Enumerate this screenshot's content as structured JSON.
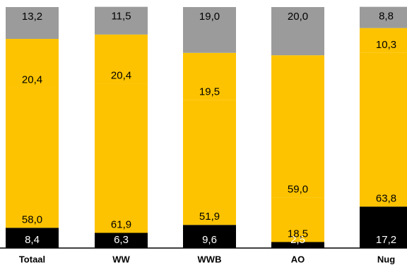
{
  "chart_data": {
    "type": "bar",
    "stacked": true,
    "categories": [
      "Totaal",
      "WW",
      "WWB",
      "AO",
      "Nug"
    ],
    "series": [
      {
        "color": "#000000",
        "label_color": "#ffffff",
        "values": [
          8.4,
          6.3,
          9.6,
          2.5,
          17.2
        ]
      },
      {
        "color": "#fdc300",
        "label_color": "#000000",
        "values": [
          58.0,
          61.9,
          51.9,
          18.5,
          63.8
        ]
      },
      {
        "color": "#fdc300",
        "label_color": "#000000",
        "values": [
          20.4,
          20.4,
          19.5,
          59.0,
          10.3
        ]
      },
      {
        "color": "#9b9b9b",
        "label_color": "#000000",
        "values": [
          13.2,
          11.5,
          19.0,
          20.0,
          8.8
        ]
      }
    ],
    "value_labels": [
      [
        "8,4",
        "58,0",
        "20,4",
        "13,2"
      ],
      [
        "6,3",
        "61,9",
        "20,4",
        "11,5"
      ],
      [
        "9,6",
        "51,9",
        "19,5",
        "19,0"
      ],
      [
        "2,5",
        "18,5",
        "59,0",
        "20,0"
      ],
      [
        "17,2",
        "63,8",
        "10,3",
        "8,8"
      ]
    ],
    "ylim": [
      0,
      100
    ],
    "legend": "none",
    "grid": false
  }
}
